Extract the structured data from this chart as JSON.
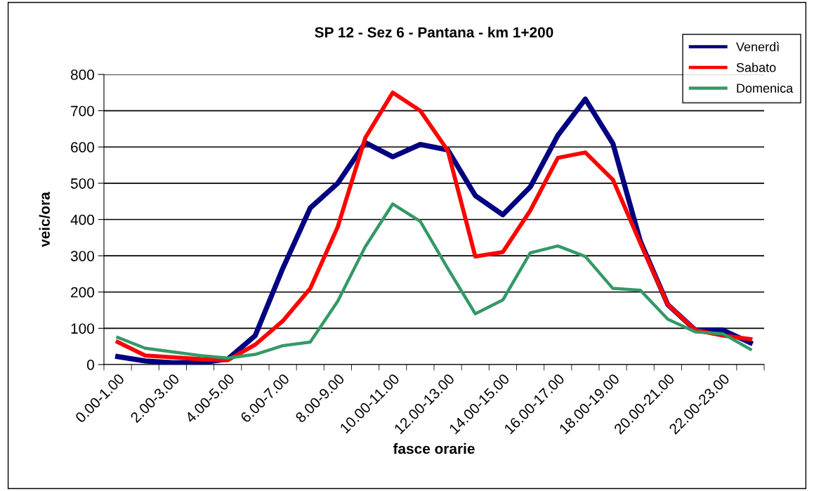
{
  "chart_data": {
    "type": "line",
    "title": "SP 12 - Sez 6 - Pantana - km 1+200",
    "xlabel": "fasce orarie",
    "ylabel": "veic/ora",
    "categories": [
      "0.00-1.00",
      null,
      "2.00-3.00",
      null,
      "4.00-5.00",
      null,
      "6.00-7.00",
      null,
      "8.00-9.00",
      null,
      "10.00-11.00",
      null,
      "12.00-13.00",
      null,
      "14.00-15.00",
      null,
      "16.00-17.00",
      null,
      "18.00-19.00",
      null,
      "20.00-21.00",
      null,
      "22.00-23.00",
      null
    ],
    "series": [
      {
        "name": "Venerdì",
        "color": "#000080",
        "values": [
          22,
          10,
          5,
          5,
          15,
          80,
          265,
          432,
          500,
          612,
          573,
          607,
          592,
          466,
          413,
          490,
          632,
          732,
          610,
          340,
          165,
          95,
          95,
          60
        ]
      },
      {
        "name": "Sabato",
        "color": "#ff0000",
        "values": [
          62,
          25,
          20,
          15,
          12,
          55,
          120,
          210,
          380,
          625,
          750,
          700,
          590,
          298,
          310,
          425,
          570,
          585,
          510,
          335,
          165,
          95,
          80,
          70
        ]
      },
      {
        "name": "Domenica",
        "color": "#339966",
        "values": [
          75,
          45,
          35,
          25,
          18,
          28,
          52,
          62,
          175,
          325,
          443,
          395,
          265,
          140,
          178,
          308,
          327,
          298,
          210,
          205,
          125,
          90,
          85,
          42
        ]
      }
    ],
    "ylim": [
      0,
      800
    ],
    "yticks": [
      0,
      100,
      200,
      300,
      400,
      500,
      600,
      700,
      800
    ],
    "grid": "y",
    "legend": "top right",
    "marker": "none",
    "line_style": "solid"
  }
}
